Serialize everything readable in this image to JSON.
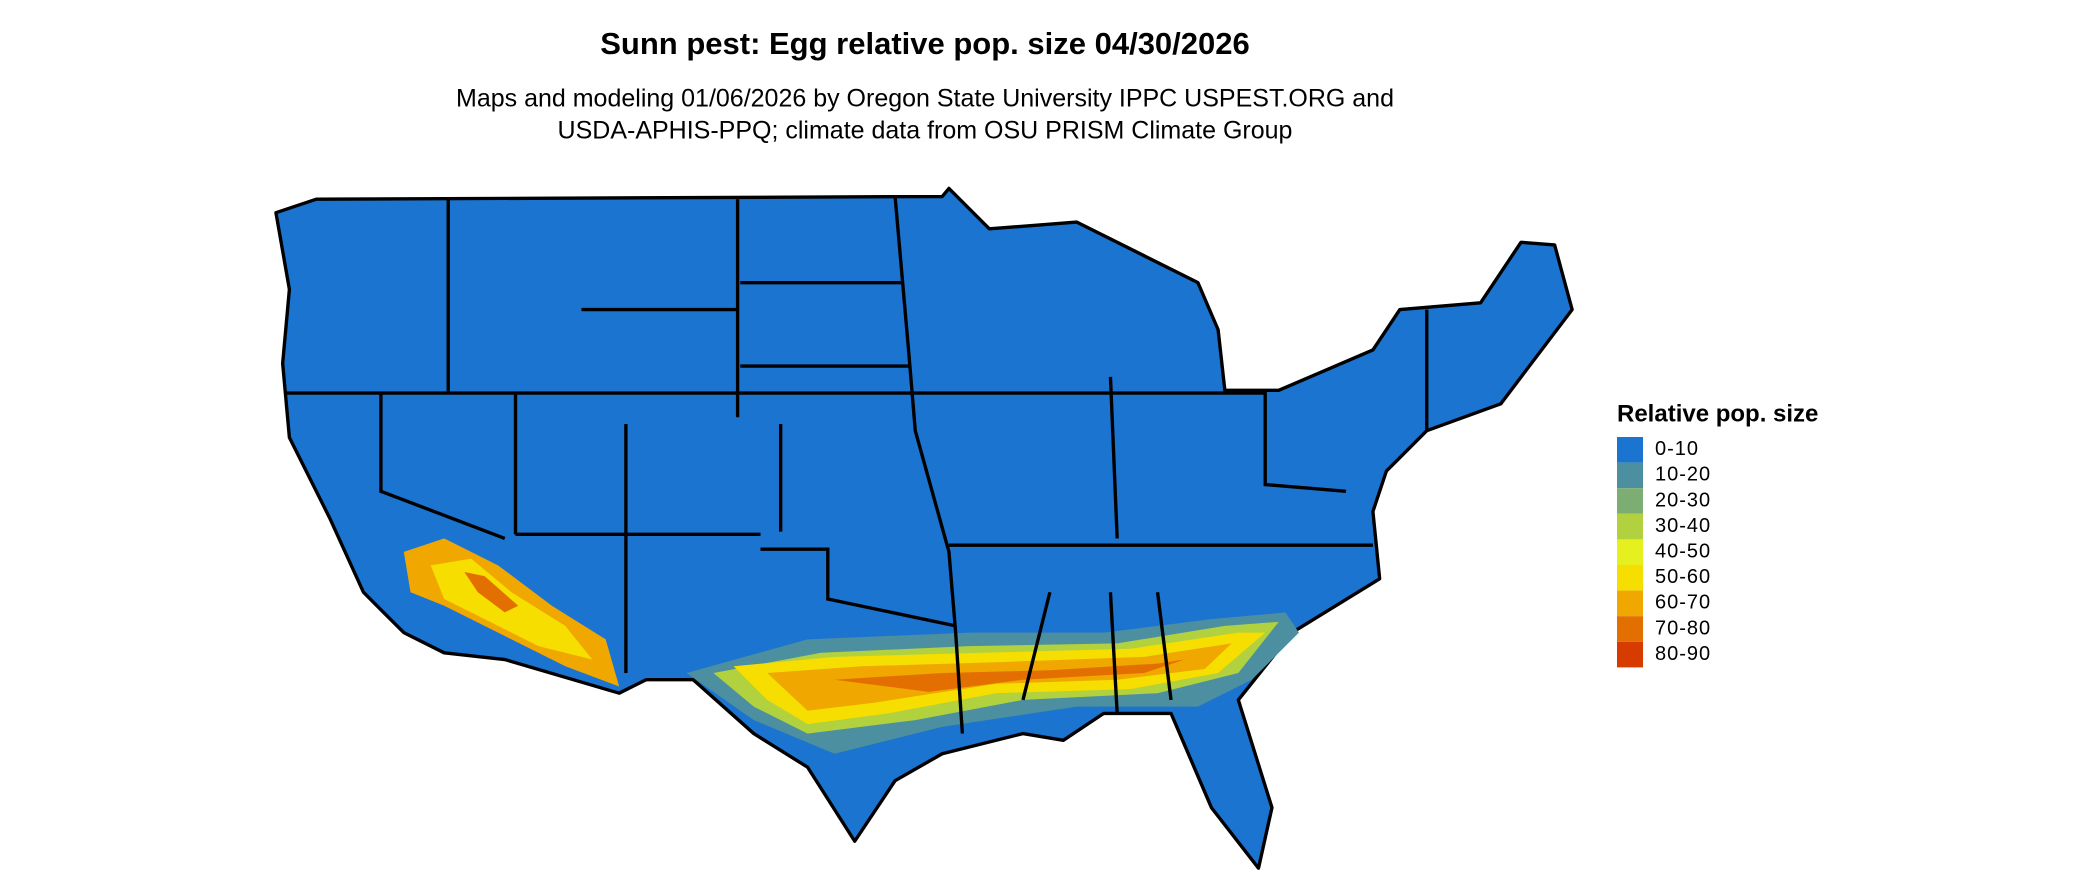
{
  "title": "Sunn pest: Egg relative pop. size 04/30/2026",
  "subtitle": [
    "Maps and modeling 01/06/2026 by Oregon State University IPPC USPEST.ORG and",
    "USDA-APHIS-PPQ; climate data from OSU PRISM Climate Group"
  ],
  "legend": {
    "title": "Relative pop. size",
    "items": [
      {
        "label": "0-10",
        "color": "#1b74d0"
      },
      {
        "label": "10-20",
        "color": "#4b8fa0"
      },
      {
        "label": "20-30",
        "color": "#7cad72"
      },
      {
        "label": "30-40",
        "color": "#b2d13e"
      },
      {
        "label": "40-50",
        "color": "#e5f01e"
      },
      {
        "label": "50-60",
        "color": "#f6de00"
      },
      {
        "label": "60-70",
        "color": "#f0a700"
      },
      {
        "label": "70-80",
        "color": "#e36f00"
      },
      {
        "label": "80-90",
        "color": "#d63b00"
      }
    ]
  }
}
